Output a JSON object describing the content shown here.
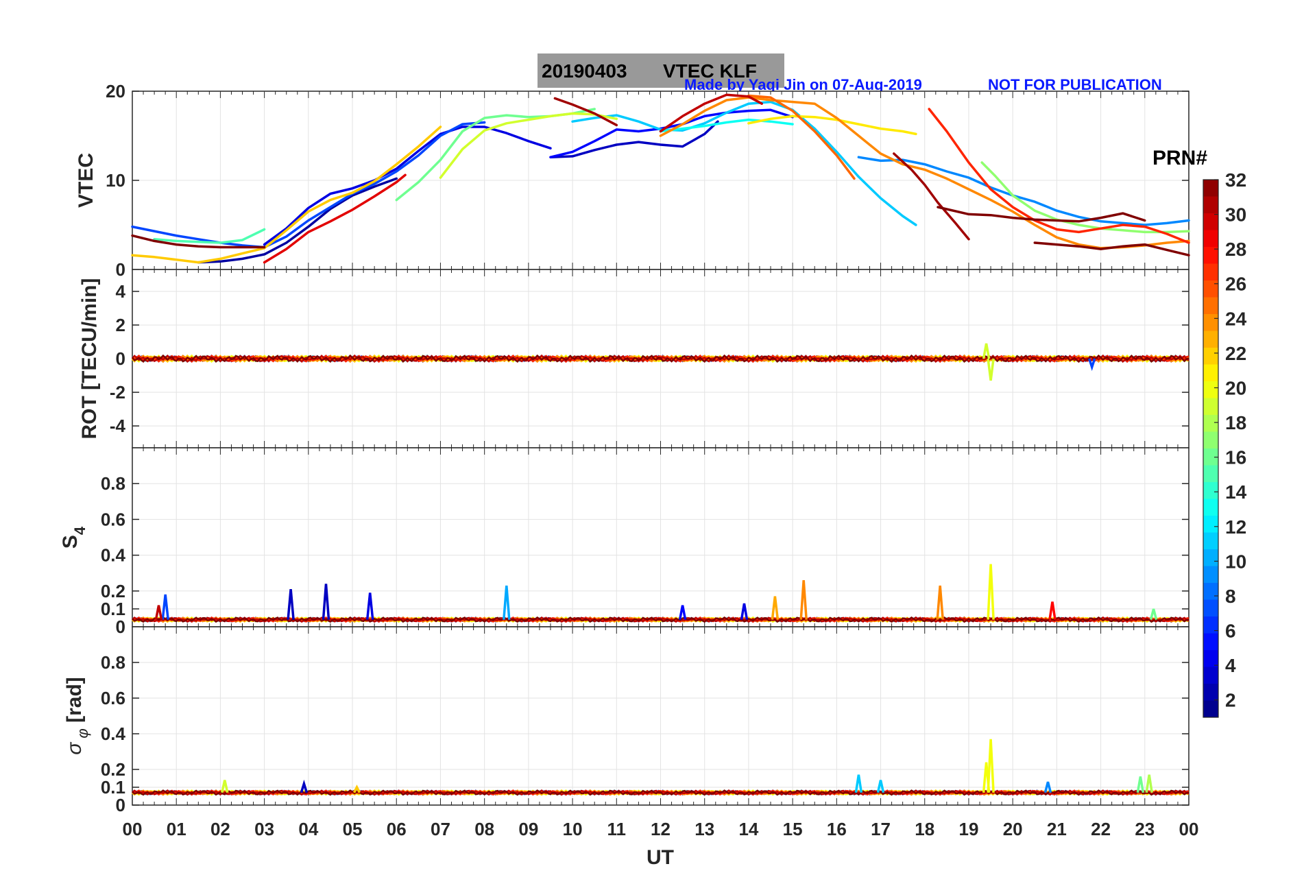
{
  "figure": {
    "title_date": "20190403",
    "title_text": "VTEC  KLF",
    "credit": "Made by Yaqi Jin on 07-Aug-2019",
    "notice": "NOT FOR PUBLICATION"
  },
  "colorbar": {
    "label": "PRN#",
    "ticks": [
      "2",
      "4",
      "6",
      "8",
      "10",
      "12",
      "14",
      "16",
      "18",
      "20",
      "22",
      "24",
      "26",
      "28",
      "30",
      "32"
    ],
    "min": 1,
    "max": 32,
    "colormap": "jet"
  },
  "chart_data": [
    {
      "type": "line",
      "panel": "vtec",
      "ylabel": "VTEC",
      "ylim": [
        0,
        20
      ],
      "yticks": [
        "0",
        "10",
        "20"
      ],
      "grid": true,
      "series": [
        {
          "prn": 2,
          "x": [
            1.5,
            2.0,
            2.5,
            3.0,
            3.5,
            4.0,
            4.5,
            5.0,
            5.5,
            6.0
          ],
          "y": [
            0.8,
            0.9,
            1.2,
            1.7,
            3.0,
            4.8,
            6.8,
            8.3,
            9.3,
            10.2
          ]
        },
        {
          "prn": 3,
          "x": [
            9.5,
            10.0,
            10.5,
            11.0,
            11.5,
            12.0,
            12.5,
            13.0,
            13.3
          ],
          "y": [
            12.6,
            12.7,
            13.4,
            14.0,
            14.3,
            14.0,
            13.8,
            15.2,
            16.6
          ]
        },
        {
          "prn": 4,
          "x": [
            3.0,
            3.5,
            4.0,
            4.5,
            5.0,
            5.5,
            6.0,
            6.5,
            7.0,
            7.5,
            8.0,
            8.5,
            9.0,
            9.5
          ],
          "y": [
            2.8,
            4.6,
            6.9,
            8.5,
            9.1,
            10.0,
            11.3,
            13.3,
            15.2,
            16.0,
            16.0,
            15.3,
            14.4,
            13.6
          ]
        },
        {
          "prn": 5,
          "x": [
            9.5,
            10.0,
            10.5,
            11.0,
            11.5,
            12.0,
            12.5,
            13.0,
            13.5,
            14.0,
            14.5,
            15.0
          ],
          "y": [
            12.6,
            13.2,
            14.4,
            15.7,
            15.5,
            15.8,
            16.3,
            17.2,
            17.6,
            17.8,
            17.9,
            17.1
          ]
        },
        {
          "prn": 7,
          "x": [
            0.0,
            0.5,
            1.0,
            1.5,
            2.0,
            2.5,
            3.0,
            3.5,
            4.0,
            4.5,
            5.0,
            5.5,
            6.0,
            6.5,
            7.0,
            7.5,
            8.0
          ],
          "y": [
            4.8,
            4.3,
            3.8,
            3.4,
            3.0,
            2.7,
            2.5,
            3.7,
            5.5,
            7.0,
            8.5,
            9.6,
            11.0,
            12.8,
            15.0,
            16.3,
            16.5
          ]
        },
        {
          "prn": 9,
          "x": [
            16.5,
            17.0,
            17.5,
            18.0,
            18.5,
            19.0,
            19.5,
            20.0,
            20.5,
            21.0,
            21.5,
            22.0,
            22.5,
            23.0,
            23.5,
            24.0
          ],
          "y": [
            12.6,
            12.2,
            12.3,
            11.8,
            11.0,
            10.3,
            9.2,
            8.3,
            7.6,
            6.6,
            5.9,
            5.4,
            5.2,
            5.0,
            5.2,
            5.5
          ]
        },
        {
          "prn": 11,
          "x": [
            10.0,
            10.5,
            11.0,
            11.5,
            12.0,
            12.5,
            13.0,
            13.5,
            14.0,
            14.5,
            15.0,
            15.5,
            16.0,
            16.5,
            17.0,
            17.5,
            17.8
          ],
          "y": [
            16.6,
            17.0,
            17.3,
            16.6,
            15.7,
            15.6,
            16.4,
            17.6,
            18.6,
            18.8,
            17.9,
            15.8,
            13.2,
            10.4,
            8.0,
            6.0,
            5.0
          ]
        },
        {
          "prn": 13,
          "x": [
            12.0,
            12.5,
            13.0,
            13.5,
            14.0,
            14.5,
            15.0
          ],
          "y": [
            15.5,
            15.8,
            16.1,
            16.5,
            16.8,
            16.6,
            16.3
          ]
        },
        {
          "prn": 15,
          "x": [
            0.5,
            1.0,
            1.5,
            2.0,
            2.5,
            3.0
          ],
          "y": [
            3.4,
            3.2,
            3.1,
            3.0,
            3.3,
            4.5
          ]
        },
        {
          "prn": 16,
          "x": [
            6.0,
            6.5,
            7.0,
            7.5,
            8.0,
            8.5,
            9.0,
            9.5,
            10.0,
            10.5
          ],
          "y": [
            7.8,
            9.8,
            12.3,
            15.5,
            17.0,
            17.3,
            17.1,
            17.2,
            17.5,
            18.0
          ]
        },
        {
          "prn": 17,
          "x": [
            19.3,
            19.6,
            20.0,
            20.5,
            21.0,
            21.5,
            22.0,
            22.5,
            23.0,
            23.5,
            24.0
          ],
          "y": [
            12.0,
            10.5,
            8.3,
            6.6,
            5.6,
            5.0,
            4.6,
            4.4,
            4.2,
            4.2,
            4.3
          ]
        },
        {
          "prn": 19,
          "x": [
            7.0,
            7.5,
            8.0,
            8.5,
            9.0,
            9.5,
            10.0,
            10.5,
            11.0
          ],
          "y": [
            10.3,
            13.5,
            15.6,
            16.4,
            16.8,
            17.2,
            17.5,
            17.4,
            16.9
          ]
        },
        {
          "prn": 21,
          "x": [
            14.0,
            14.5,
            15.0,
            15.5,
            16.0,
            16.5,
            17.0,
            17.5,
            17.8
          ],
          "y": [
            16.4,
            16.9,
            17.2,
            17.1,
            16.8,
            16.3,
            15.8,
            15.5,
            15.2
          ]
        },
        {
          "prn": 22,
          "x": [
            0.0,
            0.5,
            1.0,
            1.5,
            2.0,
            2.5,
            3.0,
            3.5,
            4.0,
            4.5,
            5.0,
            5.5,
            6.0,
            6.5,
            7.0
          ],
          "y": [
            1.6,
            1.4,
            1.1,
            0.8,
            1.2,
            1.8,
            2.4,
            4.4,
            6.5,
            7.8,
            8.6,
            9.9,
            11.8,
            13.8,
            16.0
          ]
        },
        {
          "prn": 24,
          "x": [
            12.0,
            12.5,
            13.0,
            13.5,
            14.0,
            14.5,
            15.0,
            15.5,
            16.0,
            16.5,
            17.0,
            17.5,
            18.0,
            18.5,
            19.0,
            19.5,
            20.0,
            20.5,
            21.0,
            21.5,
            22.0,
            22.5,
            23.0,
            23.5,
            24.0
          ],
          "y": [
            15.0,
            16.3,
            17.8,
            19.0,
            19.3,
            19.0,
            18.8,
            18.6,
            17.0,
            15.0,
            13.0,
            11.8,
            11.2,
            10.2,
            9.0,
            7.8,
            6.5,
            5.0,
            3.6,
            2.8,
            2.4,
            2.5,
            2.7,
            3.0,
            3.2
          ]
        },
        {
          "prn": 25,
          "x": [
            14.0,
            14.5,
            15.0,
            15.5,
            16.0,
            16.4
          ],
          "y": [
            19.5,
            19.3,
            17.8,
            15.5,
            12.8,
            10.2
          ]
        },
        {
          "prn": 27,
          "x": [
            18.1,
            18.5,
            19.0,
            19.5,
            20.0,
            20.5,
            21.0,
            21.5,
            22.0,
            22.5,
            23.0,
            23.5,
            24.0
          ],
          "y": [
            18.0,
            15.5,
            12.0,
            9.0,
            7.0,
            5.5,
            4.5,
            4.2,
            4.6,
            5.0,
            4.8,
            4.0,
            3.0
          ]
        },
        {
          "prn": 29,
          "x": [
            3.0,
            3.5,
            4.0,
            4.5,
            5.0,
            5.5,
            6.0,
            6.2
          ],
          "y": [
            0.8,
            2.3,
            4.2,
            5.4,
            6.7,
            8.2,
            9.8,
            10.6
          ]
        },
        {
          "prn": 30,
          "x": [
            12.0,
            12.5,
            13.0,
            13.5,
            14.0,
            14.3
          ],
          "y": [
            15.5,
            17.2,
            18.6,
            19.6,
            19.4,
            18.6
          ]
        },
        {
          "prn": 31,
          "x": [
            17.3,
            17.7,
            18.0,
            18.3,
            18.7,
            19.0
          ],
          "y": [
            13.0,
            11.2,
            9.5,
            7.5,
            5.2,
            3.4
          ]
        },
        {
          "prn": 32,
          "x": [
            0.0,
            0.5,
            1.0,
            1.5,
            2.0,
            2.5,
            3.0
          ],
          "y": [
            3.8,
            3.2,
            2.8,
            2.6,
            2.5,
            2.5,
            2.5
          ]
        },
        {
          "prn": 32,
          "x": [
            18.3,
            19.0,
            19.5,
            20.0,
            20.5,
            21.0,
            21.5,
            22.0,
            22.5,
            23.0
          ],
          "y": [
            7.0,
            6.2,
            6.1,
            5.8,
            5.6,
            5.5,
            5.4,
            5.8,
            6.3,
            5.5
          ]
        },
        {
          "prn": 32,
          "x": [
            20.5,
            21.0,
            21.5,
            22.0,
            22.5,
            23.0,
            23.5,
            24.0
          ],
          "y": [
            3.0,
            2.8,
            2.6,
            2.3,
            2.6,
            2.8,
            2.2,
            1.6
          ]
        },
        {
          "prn": 31,
          "x": [
            9.6,
            10.0,
            10.5,
            11.0
          ],
          "y": [
            19.2,
            18.5,
            17.5,
            16.2
          ]
        }
      ]
    },
    {
      "type": "line",
      "panel": "rot",
      "ylabel": "ROT [TECU/min]",
      "ylim": [
        -5.3,
        5.3
      ],
      "yticks": [
        "-4",
        "-2",
        "0",
        "2",
        "4"
      ],
      "grid": true,
      "baseline": 0,
      "spikes": [
        {
          "prn": 19,
          "x": 19.4,
          "y": 0.9
        },
        {
          "prn": 19,
          "x": 19.5,
          "y": -1.3
        },
        {
          "prn": 7,
          "x": 21.8,
          "y": -0.5
        }
      ]
    },
    {
      "type": "line",
      "panel": "s4",
      "ylabel": "S4",
      "ylim": [
        0,
        1.0
      ],
      "yticks": [
        "0",
        "0.1",
        "0.2",
        "0.4",
        "0.6",
        "0.8"
      ],
      "grid": true,
      "baseline": 0.04,
      "spikes": [
        {
          "prn": 7,
          "x": 0.75,
          "y": 0.18
        },
        {
          "prn": 30,
          "x": 0.6,
          "y": 0.12
        },
        {
          "prn": 3,
          "x": 3.6,
          "y": 0.21
        },
        {
          "prn": 3,
          "x": 4.4,
          "y": 0.24
        },
        {
          "prn": 4,
          "x": 5.4,
          "y": 0.19
        },
        {
          "prn": 10,
          "x": 8.5,
          "y": 0.23
        },
        {
          "prn": 5,
          "x": 12.5,
          "y": 0.12
        },
        {
          "prn": 4,
          "x": 13.9,
          "y": 0.13
        },
        {
          "prn": 23,
          "x": 14.6,
          "y": 0.17
        },
        {
          "prn": 24,
          "x": 15.25,
          "y": 0.26
        },
        {
          "prn": 24,
          "x": 18.35,
          "y": 0.23
        },
        {
          "prn": 20,
          "x": 19.5,
          "y": 0.35
        },
        {
          "prn": 28,
          "x": 20.9,
          "y": 0.14
        },
        {
          "prn": 16,
          "x": 23.2,
          "y": 0.1
        }
      ]
    },
    {
      "type": "line",
      "panel": "sigma_phi",
      "ylabel": "σ φ [rad]",
      "ylim": [
        0,
        1.0
      ],
      "yticks": [
        "0",
        "0.1",
        "0.2",
        "0.4",
        "0.6",
        "0.8"
      ],
      "grid": true,
      "baseline": 0.07,
      "spikes": [
        {
          "prn": 19,
          "x": 2.1,
          "y": 0.14
        },
        {
          "prn": 3,
          "x": 3.9,
          "y": 0.12
        },
        {
          "prn": 22,
          "x": 5.1,
          "y": 0.1
        },
        {
          "prn": 11,
          "x": 16.5,
          "y": 0.17
        },
        {
          "prn": 11,
          "x": 17.0,
          "y": 0.14
        },
        {
          "prn": 20,
          "x": 19.5,
          "y": 0.37
        },
        {
          "prn": 20,
          "x": 19.4,
          "y": 0.24
        },
        {
          "prn": 9,
          "x": 20.8,
          "y": 0.13
        },
        {
          "prn": 16,
          "x": 22.9,
          "y": 0.16
        },
        {
          "prn": 18,
          "x": 23.1,
          "y": 0.17
        }
      ]
    }
  ],
  "xaxis": {
    "label": "UT",
    "ticks": [
      "00",
      "01",
      "02",
      "03",
      "04",
      "05",
      "06",
      "07",
      "08",
      "09",
      "10",
      "11",
      "12",
      "13",
      "14",
      "15",
      "16",
      "17",
      "18",
      "19",
      "20",
      "21",
      "22",
      "23",
      "00"
    ],
    "xlim": [
      0,
      24
    ]
  }
}
